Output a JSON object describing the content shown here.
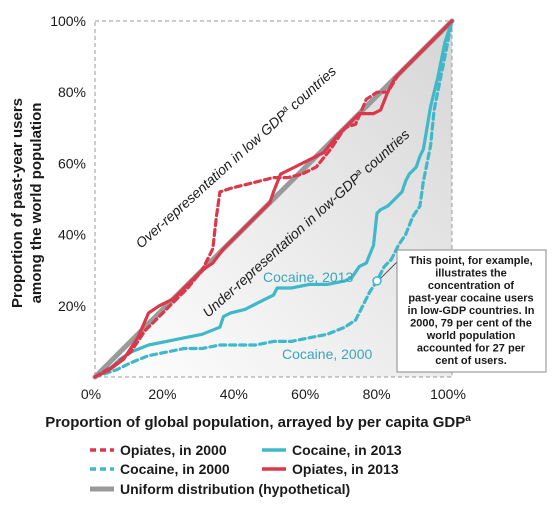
{
  "chart_data": {
    "type": "line",
    "xlabel": "Proportion of global population, arrayed by per capita GDP",
    "xlabel_sup": "a",
    "ylabel_line1": "Proportion of past-year users",
    "ylabel_line2": "among the world population",
    "xlim": [
      0,
      100
    ],
    "ylim": [
      0,
      100
    ],
    "x_ticks": [
      "0%",
      "20%",
      "40%",
      "60%",
      "80%",
      "100%"
    ],
    "y_ticks": [
      "20%",
      "40%",
      "60%",
      "80%",
      "100%"
    ],
    "y_tick_values": [
      20,
      40,
      60,
      80,
      100
    ],
    "x_tick_values": [
      0,
      20,
      40,
      60,
      80,
      100
    ],
    "annotations": {
      "over_representation": "Over-representation in low GDP",
      "over_representation_sup": "a",
      "over_representation_tail": " countries",
      "under_representation": "Under-representation in low-GDP",
      "under_representation_sup": "a",
      "under_representation_tail": " countries",
      "cocaine_2013_label": "Cocaine, 2013",
      "cocaine_2000_label": "Cocaine, 2000",
      "note_lines": [
        "This point, for example,",
        "illustrates the",
        "concentration of",
        "past-year cocaine users",
        "in low-GDP countries. In",
        "2000, 79 per cent of the",
        "world population",
        "accounted for 27 per",
        "cent of users."
      ],
      "note_point": {
        "x": 79,
        "y": 27
      }
    },
    "colors": {
      "opiates": "#d9394b",
      "cocaine": "#3fb8c9",
      "uniform": "#9a9a9a"
    },
    "legend": [
      {
        "label": "Opiates, in 2000",
        "style": "dashed",
        "color": "#d9394b"
      },
      {
        "label": "Cocaine, in 2013",
        "style": "solid",
        "color": "#3fb8c9"
      },
      {
        "label": "Cocaine, in 2000",
        "style": "dashed",
        "color": "#3fb8c9"
      },
      {
        "label": "Opiates, in 2013",
        "style": "solid",
        "color": "#d9394b"
      },
      {
        "label": "Uniform distribution (hypothetical)",
        "style": "solid",
        "color": "#9a9a9a"
      }
    ],
    "series": [
      {
        "name": "Opiates, in 2000",
        "style": "dashed",
        "color": "#d9394b",
        "points": [
          [
            0,
            0
          ],
          [
            5,
            3
          ],
          [
            10,
            7
          ],
          [
            14,
            13
          ],
          [
            18,
            17
          ],
          [
            22,
            21
          ],
          [
            26,
            25
          ],
          [
            30,
            30
          ],
          [
            33,
            36
          ],
          [
            34,
            45
          ],
          [
            35,
            52
          ],
          [
            38,
            53
          ],
          [
            42,
            54
          ],
          [
            46,
            55
          ],
          [
            50,
            56
          ],
          [
            54,
            56
          ],
          [
            58,
            57
          ],
          [
            62,
            59
          ],
          [
            66,
            64
          ],
          [
            70,
            70
          ],
          [
            73,
            71
          ],
          [
            76,
            78
          ],
          [
            79,
            80
          ],
          [
            82,
            80
          ],
          [
            85,
            85
          ],
          [
            88,
            88
          ],
          [
            91,
            91
          ],
          [
            94,
            94
          ],
          [
            97,
            97
          ],
          [
            100,
            100
          ]
        ]
      },
      {
        "name": "Cocaine, in 2013",
        "style": "solid",
        "color": "#3fb8c9",
        "points": [
          [
            0,
            0
          ],
          [
            5,
            3
          ],
          [
            7,
            5
          ],
          [
            10,
            7
          ],
          [
            15,
            9
          ],
          [
            20,
            10
          ],
          [
            25,
            11
          ],
          [
            30,
            12
          ],
          [
            35,
            14
          ],
          [
            36,
            17
          ],
          [
            38,
            18
          ],
          [
            42,
            19
          ],
          [
            46,
            21
          ],
          [
            50,
            23
          ],
          [
            51,
            25
          ],
          [
            55,
            25
          ],
          [
            60,
            26
          ],
          [
            65,
            26
          ],
          [
            70,
            27
          ],
          [
            72,
            28
          ],
          [
            74,
            31
          ],
          [
            76,
            32
          ],
          [
            78,
            37
          ],
          [
            79,
            46
          ],
          [
            80,
            47
          ],
          [
            82,
            48
          ],
          [
            84,
            50
          ],
          [
            86,
            52
          ],
          [
            87,
            55
          ],
          [
            88,
            57
          ],
          [
            90,
            59
          ],
          [
            91,
            62
          ],
          [
            92,
            64
          ],
          [
            93,
            70
          ],
          [
            94,
            76
          ],
          [
            96,
            84
          ],
          [
            98,
            94
          ],
          [
            100,
            100
          ]
        ]
      },
      {
        "name": "Cocaine, in 2000",
        "style": "dashed",
        "color": "#3fb8c9",
        "points": [
          [
            0,
            0
          ],
          [
            6,
            2
          ],
          [
            8,
            3
          ],
          [
            10,
            4
          ],
          [
            15,
            6
          ],
          [
            20,
            7
          ],
          [
            25,
            8
          ],
          [
            30,
            8
          ],
          [
            35,
            9
          ],
          [
            40,
            9
          ],
          [
            45,
            9
          ],
          [
            50,
            10
          ],
          [
            55,
            10
          ],
          [
            60,
            11
          ],
          [
            65,
            12
          ],
          [
            70,
            14
          ],
          [
            73,
            16
          ],
          [
            75,
            20
          ],
          [
            77,
            24
          ],
          [
            79,
            27
          ],
          [
            81,
            31
          ],
          [
            83,
            33
          ],
          [
            85,
            37
          ],
          [
            87,
            40
          ],
          [
            89,
            45
          ],
          [
            91,
            48
          ],
          [
            92,
            55
          ],
          [
            93,
            60
          ],
          [
            94,
            65
          ],
          [
            95,
            75
          ],
          [
            96,
            80
          ],
          [
            98,
            90
          ],
          [
            100,
            100
          ]
        ]
      },
      {
        "name": "Opiates, in 2013",
        "style": "solid",
        "color": "#d9394b",
        "points": [
          [
            0,
            0
          ],
          [
            4,
            2
          ],
          [
            8,
            5
          ],
          [
            12,
            11
          ],
          [
            15,
            18
          ],
          [
            18,
            20
          ],
          [
            22,
            22
          ],
          [
            26,
            26
          ],
          [
            30,
            30
          ],
          [
            33,
            32
          ],
          [
            36,
            36
          ],
          [
            40,
            40
          ],
          [
            43,
            43
          ],
          [
            46,
            46
          ],
          [
            49,
            49
          ],
          [
            50,
            52
          ],
          [
            52,
            57
          ],
          [
            56,
            59
          ],
          [
            60,
            61
          ],
          [
            64,
            63
          ],
          [
            68,
            68
          ],
          [
            72,
            72
          ],
          [
            74,
            74
          ],
          [
            76,
            74
          ],
          [
            78,
            74
          ],
          [
            80,
            75
          ],
          [
            82,
            80
          ],
          [
            84,
            84
          ],
          [
            87,
            87
          ],
          [
            90,
            90
          ],
          [
            93,
            93
          ],
          [
            96,
            96
          ],
          [
            100,
            100
          ]
        ]
      },
      {
        "name": "Uniform distribution (hypothetical)",
        "style": "solid",
        "color": "#9a9a9a",
        "points": [
          [
            0,
            0
          ],
          [
            100,
            100
          ]
        ]
      }
    ]
  }
}
